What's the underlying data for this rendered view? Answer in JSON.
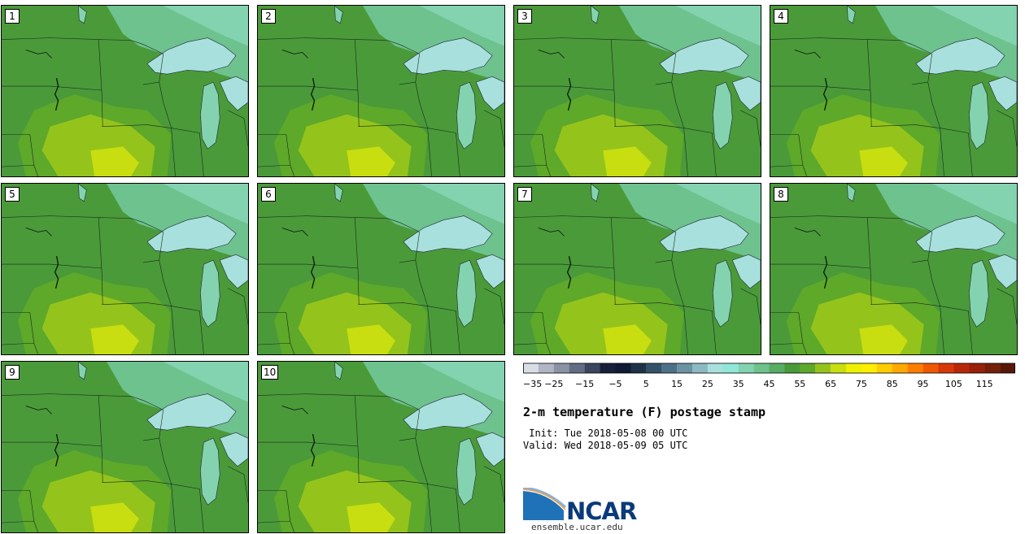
{
  "panels": [
    {
      "label": "1"
    },
    {
      "label": "2"
    },
    {
      "label": "3"
    },
    {
      "label": "4"
    },
    {
      "label": "5"
    },
    {
      "label": "6"
    },
    {
      "label": "7"
    },
    {
      "label": "8"
    },
    {
      "label": "9"
    },
    {
      "label": "10"
    }
  ],
  "colorbar": {
    "tick_labels": [
      "−35",
      "−25",
      "−15",
      "−5",
      "5",
      "15",
      "25",
      "35",
      "45",
      "55",
      "65",
      "75",
      "85",
      "95",
      "105",
      "115"
    ],
    "colors": [
      "#d8dde6",
      "#b0b6c3",
      "#8a93a5",
      "#626c82",
      "#3a455e",
      "#16203a",
      "#0e1a33",
      "#1d3247",
      "#33526a",
      "#4b7188",
      "#6a93a4",
      "#8cb9c2",
      "#a8e0dd",
      "#8ee8d8",
      "#84d3b0",
      "#6dc28e",
      "#58ad66",
      "#4a9a3a",
      "#5ea82a",
      "#94c41c",
      "#c8de10",
      "#eef000",
      "#ffee00",
      "#ffcc00",
      "#ffa800",
      "#ff7e00",
      "#f05800",
      "#d83808",
      "#b82808",
      "#982008",
      "#742008",
      "#581808"
    ]
  },
  "title": "2-m temperature (F) postage stamp",
  "init": " Init: Tue 2018-05-08 00 UTC",
  "valid": "Valid: Wed 2018-05-09 05 UTC",
  "logo": {
    "text": "NCAR",
    "site": "ensemble.ucar.edu"
  },
  "palette": {
    "land_dark": "#4a9a3a",
    "land_mid": "#5ea82a",
    "land_warm": "#94c41c",
    "land_hot": "#c8de10",
    "cool": "#84d3b0",
    "lake": "#a8e0dd"
  }
}
